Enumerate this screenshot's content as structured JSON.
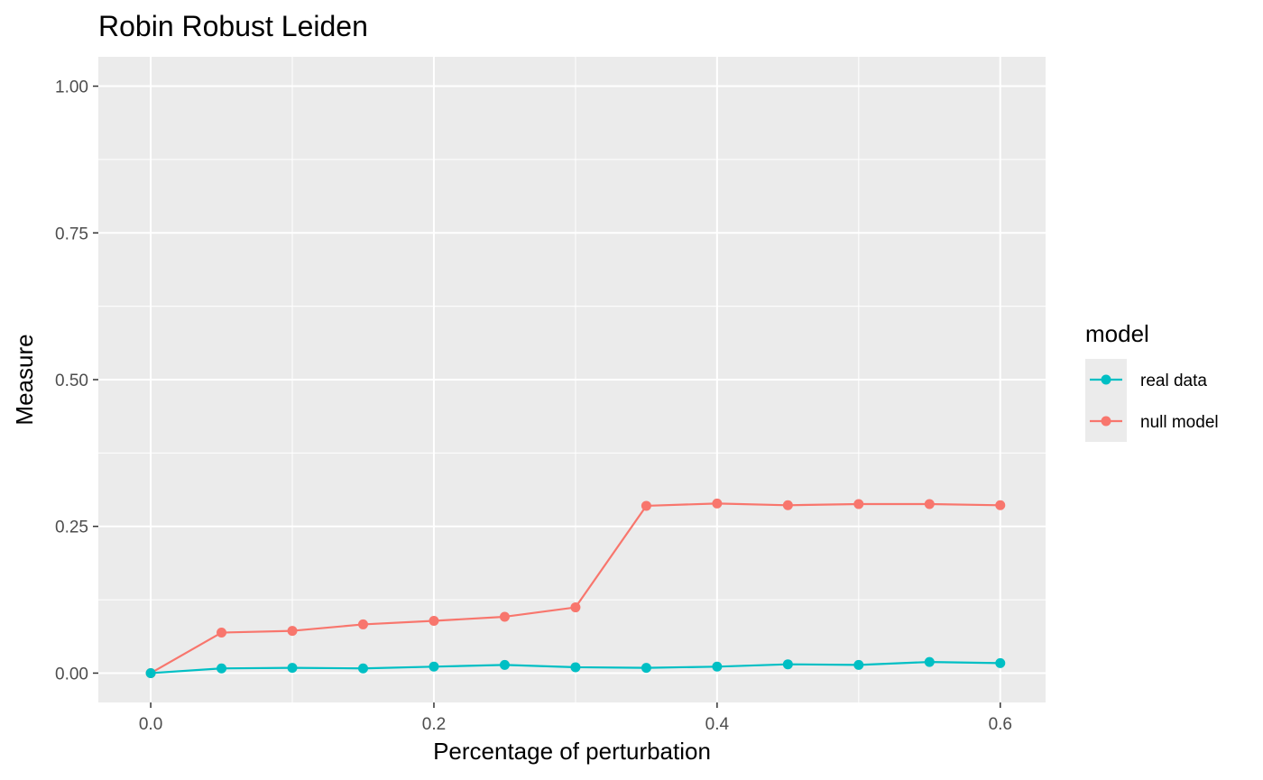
{
  "chart_data": {
    "type": "line",
    "title": "Robin Robust Leiden",
    "xlabel": "Percentage of perturbation",
    "ylabel": "Measure",
    "xlim": [
      -0.037,
      0.632
    ],
    "ylim": [
      -0.05,
      1.05
    ],
    "x_ticks": [
      0.0,
      0.2,
      0.4,
      0.6
    ],
    "x_tick_labels": [
      "0.0",
      "0.2",
      "0.4",
      "0.6"
    ],
    "y_ticks": [
      0.0,
      0.25,
      0.5,
      0.75,
      1.0
    ],
    "y_tick_labels": [
      "0.00",
      "0.25",
      "0.50",
      "0.75",
      "1.00"
    ],
    "grid": true,
    "legend_position": "right",
    "legend_title": "model",
    "x": [
      0.0,
      0.05,
      0.1,
      0.15,
      0.2,
      0.25,
      0.3,
      0.35,
      0.4,
      0.45,
      0.5,
      0.55,
      0.6
    ],
    "series": [
      {
        "name": "real data",
        "color": "#00bfc4",
        "values": [
          0.0,
          0.008,
          0.009,
          0.008,
          0.011,
          0.014,
          0.01,
          0.009,
          0.011,
          0.015,
          0.014,
          0.019,
          0.017
        ]
      },
      {
        "name": "null model",
        "color": "#f8766d",
        "values": [
          0.0,
          0.069,
          0.072,
          0.083,
          0.089,
          0.096,
          0.112,
          0.285,
          0.289,
          0.286,
          0.288,
          0.288,
          0.286
        ]
      }
    ]
  }
}
